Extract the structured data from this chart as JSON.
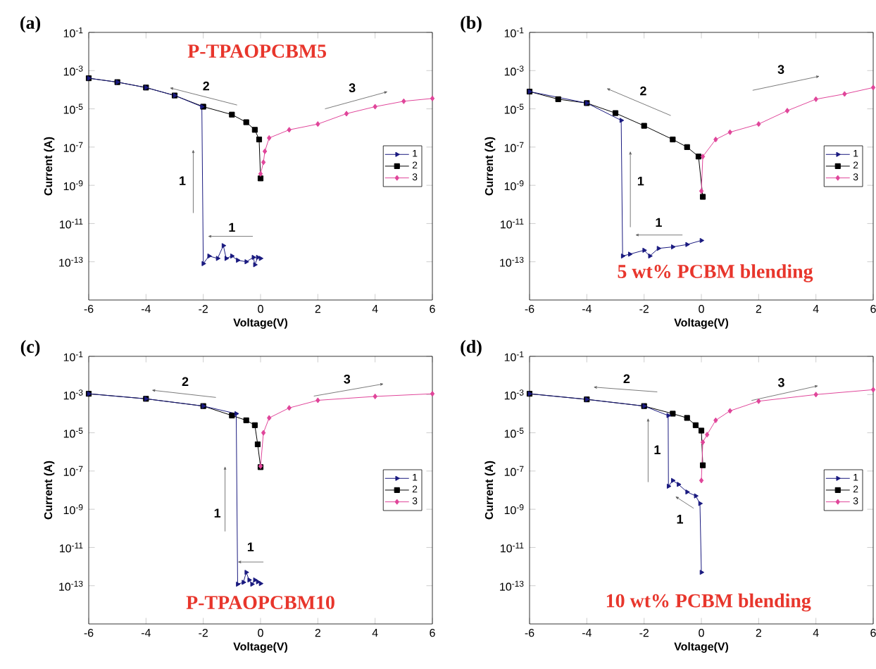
{
  "chart_data": [
    {
      "type": "line",
      "title": "P-TPAOPCBM5",
      "xlabel": "Voltage(V)",
      "ylabel": "Current (A)",
      "log": "y",
      "legend": "right",
      "xlim": [
        -6,
        6
      ],
      "ylim": [
        1e-15,
        0.1
      ],
      "xticks": [
        -6,
        -4,
        -2,
        0,
        2,
        4,
        6
      ],
      "yticks": [
        {
          "value": 1e-13,
          "label": "10$^{-13}$"
        },
        {
          "value": 1e-11,
          "label": "10$^{-11}$"
        },
        {
          "value": 1e-09,
          "label": "10$^{-9}$"
        },
        {
          "value": 1e-07,
          "label": "10$^{-7}$"
        },
        {
          "value": 1e-05,
          "label": "10$^{-5}$"
        },
        {
          "value": 0.001,
          "label": "10$^{-3}$"
        },
        {
          "value": 0.1,
          "label": "10$^{-1}$"
        }
      ],
      "series": [
        {
          "name": "1",
          "color": "#1a1a80",
          "marker": "triangle",
          "x": [
            0,
            -0.1,
            -0.2,
            -0.25,
            -0.5,
            -0.8,
            -1,
            -1.2,
            -1.3,
            -1.5,
            -1.8,
            -2,
            -2.05,
            -3,
            -4,
            -5,
            -6
          ],
          "values": [
            1.5e-13,
            1.7e-13,
            7e-14,
            1.7e-13,
            1e-13,
            1.2e-13,
            2e-13,
            1.5e-13,
            7e-13,
            1.5e-13,
            2e-13,
            8e-14,
            1.3e-05,
            5e-05,
            0.00013,
            0.00025,
            0.0004
          ]
        },
        {
          "name": "2",
          "color": "#000000",
          "marker": "square",
          "x": [
            -6,
            -5,
            -4,
            -3,
            -2,
            -1,
            -0.5,
            -0.2,
            -0.05,
            0
          ],
          "values": [
            0.0004,
            0.00025,
            0.00013,
            5e-05,
            1.3e-05,
            5e-06,
            2e-06,
            8e-07,
            2.5e-07,
            2.3e-09
          ]
        },
        {
          "name": "3",
          "color": "#e0459a",
          "marker": "diamond",
          "x": [
            0,
            0.1,
            0.15,
            0.3,
            1,
            2,
            3,
            4,
            5,
            6
          ],
          "values": [
            4e-09,
            1.6e-08,
            6e-08,
            3e-07,
            8e-07,
            1.6e-06,
            5.6e-06,
            1.3e-05,
            2.5e-05,
            3.5e-05
          ]
        }
      ],
      "annotations": [
        "(a)",
        "2",
        "3",
        "1",
        "1"
      ]
    },
    {
      "type": "line",
      "title": "5 wt% PCBM blending",
      "xlabel": "Voltage(V)",
      "ylabel": "Current (A)",
      "log": "y",
      "legend": "right",
      "xlim": [
        -6,
        6
      ],
      "ylim": [
        1e-15,
        0.1
      ],
      "xticks": [
        -6,
        -4,
        -2,
        0,
        2,
        4,
        6
      ],
      "yticks": [
        {
          "value": 1e-13,
          "label": "10$^{-13}$"
        },
        {
          "value": 1e-11,
          "label": "10$^{-11}$"
        },
        {
          "value": 1e-09,
          "label": "10$^{-9}$"
        },
        {
          "value": 1e-07,
          "label": "10$^{-7}$"
        },
        {
          "value": 1e-05,
          "label": "10$^{-5}$"
        },
        {
          "value": 0.001,
          "label": "10$^{-3}$"
        },
        {
          "value": 0.1,
          "label": "10$^{-1}$"
        }
      ],
      "series": [
        {
          "name": "1",
          "color": "#1a1a80",
          "marker": "triangle",
          "x": [
            0,
            -0.5,
            -1,
            -1.5,
            -1.8,
            -2,
            -2.5,
            -2.75,
            -2.8,
            -4,
            -6
          ],
          "values": [
            1.3e-12,
            8e-13,
            6e-13,
            5e-13,
            2e-13,
            4e-13,
            2.5e-13,
            2e-13,
            2.5e-06,
            2e-05,
            8e-05
          ]
        },
        {
          "name": "2",
          "color": "#000000",
          "marker": "square",
          "x": [
            -6,
            -5,
            -4,
            -3,
            -2,
            -1,
            -0.5,
            -0.1,
            0.05
          ],
          "values": [
            8e-05,
            3.2e-05,
            2e-05,
            6e-06,
            1.3e-06,
            2.5e-07,
            1e-07,
            3.2e-08,
            2.5e-10
          ]
        },
        {
          "name": "3",
          "color": "#e0459a",
          "marker": "diamond",
          "x": [
            0,
            0.05,
            0.5,
            1,
            2,
            3,
            4,
            5,
            6
          ],
          "values": [
            5e-10,
            3.2e-08,
            2.5e-07,
            6e-07,
            1.6e-06,
            8e-06,
            3.2e-05,
            6e-05,
            0.00013
          ]
        }
      ],
      "annotations": [
        "(b)",
        "2",
        "3",
        "1",
        "1"
      ]
    },
    {
      "type": "line",
      "title": "P-TPAOPCBM10",
      "xlabel": "Voltage(V)",
      "ylabel": "Current (A)",
      "log": "y",
      "legend": "right",
      "xlim": [
        -6,
        6
      ],
      "ylim": [
        1e-15,
        0.1
      ],
      "xticks": [
        -6,
        -4,
        -2,
        0,
        2,
        4,
        6
      ],
      "yticks": [
        {
          "value": 1e-13,
          "label": "10$^{-13}$"
        },
        {
          "value": 1e-11,
          "label": "10$^{-11}$"
        },
        {
          "value": 1e-09,
          "label": "10$^{-9}$"
        },
        {
          "value": 1e-07,
          "label": "10$^{-7}$"
        },
        {
          "value": 1e-05,
          "label": "10$^{-5}$"
        },
        {
          "value": 0.001,
          "label": "10$^{-3}$"
        },
        {
          "value": 0.1,
          "label": "10$^{-1}$"
        }
      ],
      "series": [
        {
          "name": "1",
          "color": "#1a1a80",
          "marker": "triangle",
          "x": [
            0,
            -0.1,
            -0.2,
            -0.3,
            -0.4,
            -0.5,
            -0.6,
            -0.8,
            -0.85,
            -2,
            -4,
            -6
          ],
          "values": [
            1.3e-13,
            1.6e-13,
            2e-13,
            1.2e-13,
            2e-13,
            5e-13,
            1.5e-13,
            1.2e-13,
            0.0001,
            0.00025,
            0.0006,
            0.0011
          ]
        },
        {
          "name": "2",
          "color": "#000000",
          "marker": "square",
          "x": [
            -6,
            -4,
            -2,
            -1,
            -0.5,
            -0.2,
            -0.1,
            0
          ],
          "values": [
            0.0011,
            0.0006,
            0.00025,
            8e-05,
            4.5e-05,
            2.5e-05,
            2.5e-06,
            1.6e-07
          ]
        },
        {
          "name": "3",
          "color": "#e0459a",
          "marker": "diamond",
          "x": [
            0,
            0.1,
            0.3,
            1,
            2,
            4,
            6
          ],
          "values": [
            1.8e-07,
            1e-05,
            6e-05,
            0.0002,
            0.0005,
            0.0008,
            0.0011
          ]
        }
      ],
      "annotations": [
        "(c)",
        "2",
        "3",
        "1",
        "1"
      ]
    },
    {
      "type": "line",
      "title": "10 wt% PCBM blending",
      "xlabel": "Voltage(V)",
      "ylabel": "Current (A)",
      "log": "y",
      "legend": "right",
      "xlim": [
        -6,
        6
      ],
      "ylim": [
        1e-15,
        0.1
      ],
      "xticks": [
        -6,
        -4,
        -2,
        0,
        2,
        4,
        6
      ],
      "yticks": [
        {
          "value": 1e-13,
          "label": "10$^{-13}$"
        },
        {
          "value": 1e-11,
          "label": "10$^{-11}$"
        },
        {
          "value": 1e-09,
          "label": "10$^{-9}$"
        },
        {
          "value": 1e-07,
          "label": "10$^{-7}$"
        },
        {
          "value": 1e-05,
          "label": "10$^{-5}$"
        },
        {
          "value": 0.001,
          "label": "10$^{-3}$"
        },
        {
          "value": 0.1,
          "label": "10$^{-1}$"
        }
      ],
      "series": [
        {
          "name": "1",
          "color": "#1a1a80",
          "marker": "triangle",
          "x": [
            0,
            -0.05,
            -0.2,
            -0.5,
            -0.8,
            -1,
            -1.15,
            -1.16,
            -2,
            -4,
            -6
          ],
          "values": [
            5e-13,
            2e-09,
            5e-09,
            8e-09,
            2e-08,
            3.2e-08,
            1.6e-08,
            8e-05,
            0.00025,
            0.00056,
            0.0011
          ]
        },
        {
          "name": "2",
          "color": "#000000",
          "marker": "square",
          "x": [
            -6,
            -4,
            -2,
            -1,
            -0.5,
            -0.2,
            0,
            0.05
          ],
          "values": [
            0.0011,
            0.00056,
            0.00025,
            0.0001,
            6e-05,
            2.5e-05,
            1.3e-05,
            2e-07
          ]
        },
        {
          "name": "3",
          "color": "#e0459a",
          "marker": "diamond",
          "x": [
            0,
            0.05,
            0.2,
            0.5,
            1,
            2,
            4,
            6
          ],
          "values": [
            3.2e-08,
            3.2e-06,
            8e-06,
            4.5e-05,
            0.00014,
            0.00045,
            0.001,
            0.0018
          ]
        }
      ],
      "annotations": [
        "(d)",
        "2",
        "3",
        "1",
        "1"
      ]
    }
  ]
}
